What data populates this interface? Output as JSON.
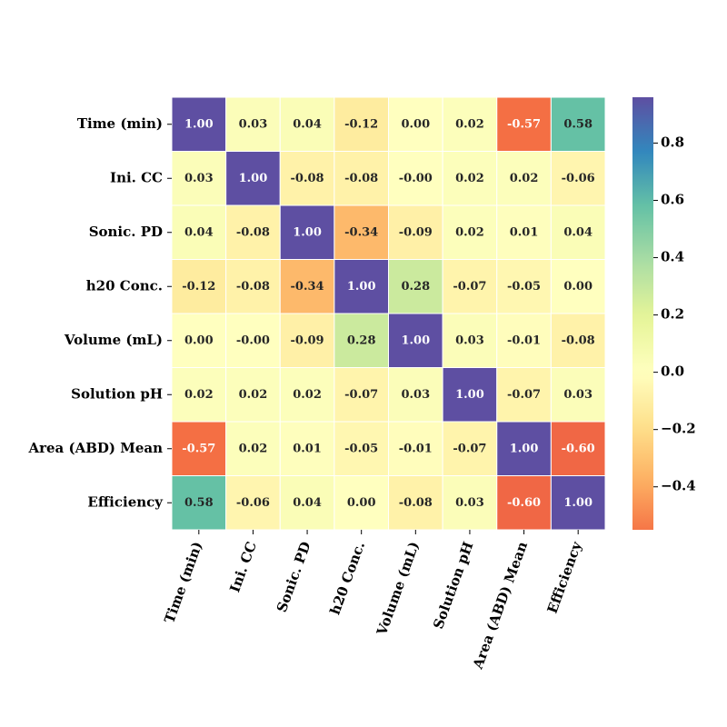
{
  "chart_data": {
    "type": "heatmap",
    "x_categories": [
      "Time (min)",
      "Ini. CC",
      "Sonic. PD",
      "h20 Conc.",
      "Volume (mL)",
      "Solution pH",
      "Area (ABD) Mean",
      "Efficiency"
    ],
    "y_categories": [
      "Time (min)",
      "Ini. CC",
      "Sonic. PD",
      "h20 Conc.",
      "Volume (mL)",
      "Solution pH",
      "Area (ABD) Mean",
      "Efficiency"
    ],
    "values": [
      [
        1.0,
        0.03,
        0.04,
        -0.12,
        0.0,
        0.02,
        -0.57,
        0.58
      ],
      [
        0.03,
        1.0,
        -0.08,
        -0.08,
        0.0,
        0.02,
        0.02,
        -0.06
      ],
      [
        0.04,
        -0.08,
        1.0,
        -0.34,
        -0.09,
        0.02,
        0.01,
        0.04
      ],
      [
        -0.12,
        -0.08,
        -0.34,
        1.0,
        0.28,
        -0.07,
        -0.05,
        0.0
      ],
      [
        0.0,
        0.0,
        -0.09,
        0.28,
        1.0,
        0.03,
        -0.01,
        -0.08
      ],
      [
        0.02,
        0.02,
        0.02,
        -0.07,
        0.03,
        1.0,
        -0.07,
        0.03
      ],
      [
        -0.57,
        0.02,
        0.01,
        -0.05,
        -0.01,
        -0.07,
        1.0,
        -0.6
      ],
      [
        0.58,
        -0.06,
        0.04,
        0.0,
        -0.08,
        0.03,
        -0.6,
        1.0
      ]
    ],
    "value_labels": [
      [
        "1.00",
        "0.03",
        "0.04",
        "-0.12",
        "0.00",
        "0.02",
        "-0.57",
        "0.58"
      ],
      [
        "0.03",
        "1.00",
        "-0.08",
        "-0.08",
        "-0.00",
        "0.02",
        "0.02",
        "-0.06"
      ],
      [
        "0.04",
        "-0.08",
        "1.00",
        "-0.34",
        "-0.09",
        "0.02",
        "0.01",
        "0.04"
      ],
      [
        "-0.12",
        "-0.08",
        "-0.34",
        "1.00",
        "0.28",
        "-0.07",
        "-0.05",
        "0.00"
      ],
      [
        "0.00",
        "-0.00",
        "-0.09",
        "0.28",
        "1.00",
        "0.03",
        "-0.01",
        "-0.08"
      ],
      [
        "0.02",
        "0.02",
        "0.02",
        "-0.07",
        "0.03",
        "1.00",
        "-0.07",
        "0.03"
      ],
      [
        "-0.57",
        "0.02",
        "0.01",
        "-0.05",
        "-0.01",
        "-0.07",
        "1.00",
        "-0.60"
      ],
      [
        "0.58",
        "-0.06",
        "0.04",
        "0.00",
        "-0.08",
        "0.03",
        "-0.60",
        "1.00"
      ]
    ],
    "colormap": [
      "#9e0142",
      "#d53e4f",
      "#f46d43",
      "#fdae61",
      "#fee08b",
      "#ffffbf",
      "#e6f598",
      "#abdda4",
      "#66c2a5",
      "#3288bd",
      "#5e4fa2"
    ],
    "center": 0,
    "clim": [
      -0.55,
      0.96
    ],
    "cticks": [
      {
        "value": -0.4,
        "label": "−0.4"
      },
      {
        "value": -0.2,
        "label": "−0.2"
      },
      {
        "value": 0,
        "label": "0.0"
      },
      0.2,
      0.4,
      0.6,
      0.8
    ]
  }
}
